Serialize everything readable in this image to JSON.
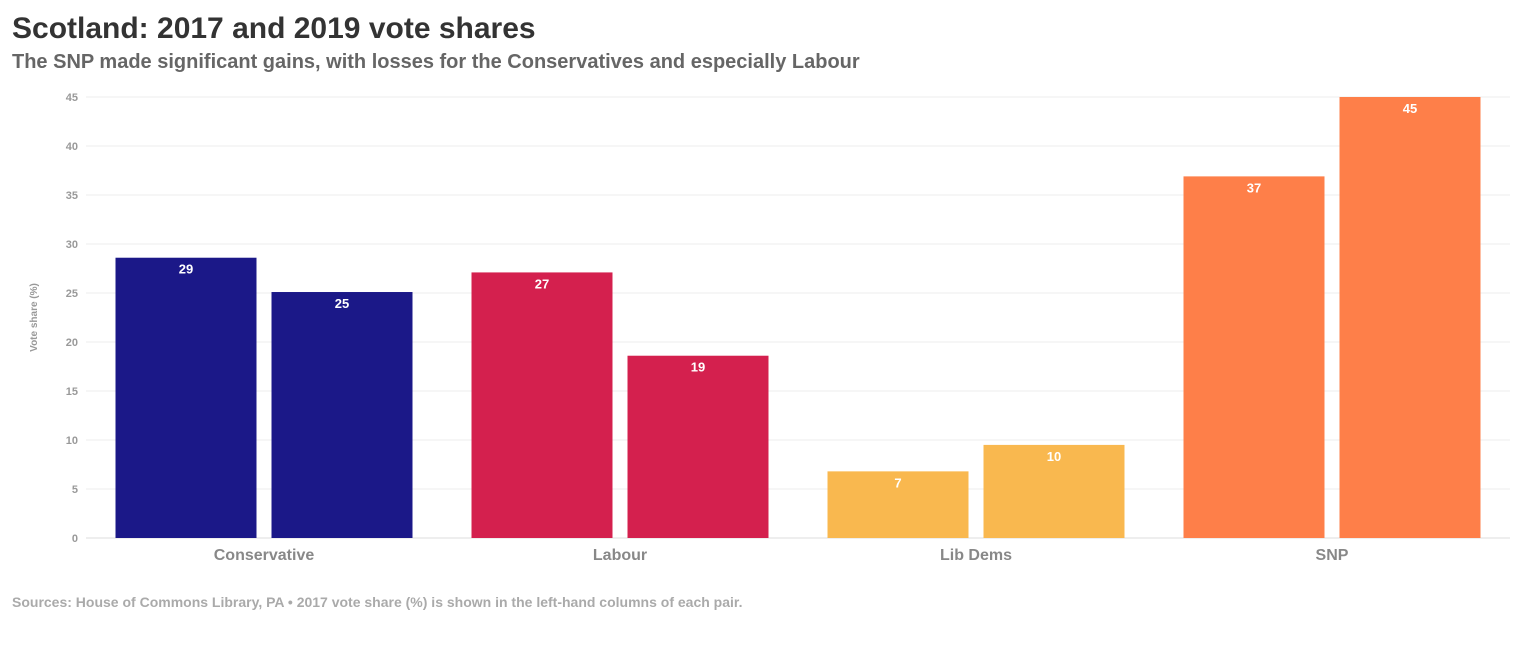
{
  "title": "Scotland: 2017 and 2019 vote shares",
  "subtitle": "The SNP made significant gains, with losses for the Conservatives and especially Labour",
  "footer": "Sources: House of Commons Library, PA • 2017 vote share (%) is shown in the left-hand columns of each pair.",
  "chart_data": {
    "type": "bar",
    "categories": [
      "Conservative",
      "Labour",
      "Lib Dems",
      "SNP"
    ],
    "colors": [
      "#1b1888",
      "#d4204e",
      "#f9b84f",
      "#fe7f49"
    ],
    "series": [
      {
        "values": [
          28.6,
          27.1,
          6.8,
          36.9
        ],
        "labels": [
          "29",
          "27",
          "7",
          "37"
        ]
      },
      {
        "values": [
          25.1,
          18.6,
          9.5,
          45.0
        ],
        "labels": [
          "25",
          "19",
          "10",
          "45"
        ]
      }
    ],
    "ylabel": "Vote share (%)",
    "ylim": [
      0,
      45
    ],
    "yticks": [
      0,
      5,
      10,
      15,
      20,
      25,
      30,
      35,
      40,
      45
    ],
    "grid": true,
    "legend": "none"
  }
}
